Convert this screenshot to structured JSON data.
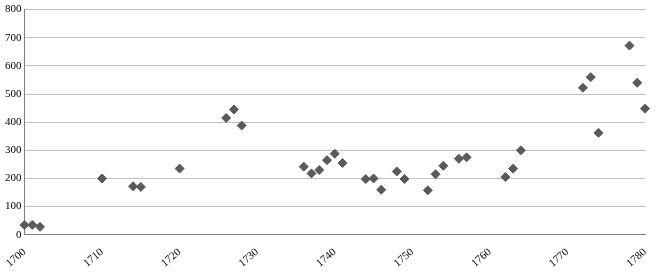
{
  "chart_data": {
    "type": "scatter",
    "x": [
      1700,
      1701,
      1702,
      1710,
      1714,
      1715,
      1720,
      1726,
      1727,
      1728,
      1736,
      1737,
      1738,
      1739,
      1740,
      1741,
      1744,
      1745,
      1746,
      1748,
      1749,
      1752,
      1753,
      1754,
      1756,
      1757,
      1762,
      1763,
      1764,
      1772,
      1773,
      1774,
      1778,
      1779,
      1780
    ],
    "values": [
      35,
      35,
      28,
      200,
      172,
      170,
      235,
      415,
      445,
      388,
      242,
      218,
      230,
      265,
      288,
      255,
      198,
      200,
      160,
      225,
      198,
      158,
      215,
      245,
      270,
      275,
      205,
      235,
      300,
      522,
      560,
      362,
      672,
      540,
      448
    ],
    "color": "#5a5a5a",
    "marker": "diamond",
    "xlim": [
      1700,
      1780
    ],
    "xticks": [
      1700,
      1710,
      1720,
      1730,
      1740,
      1750,
      1760,
      1770,
      1780
    ],
    "ylim": [
      0,
      800
    ],
    "yticks": [
      0,
      100,
      200,
      300,
      400,
      500,
      600,
      700,
      800
    ],
    "grid": "y"
  }
}
